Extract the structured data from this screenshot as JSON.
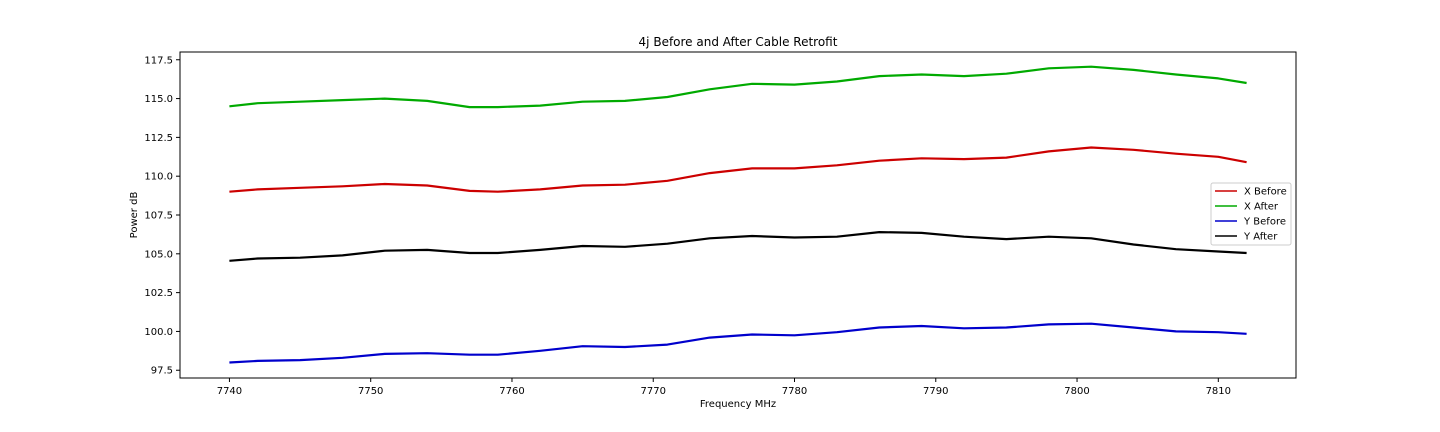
{
  "chart_data": {
    "type": "line",
    "title": "4j Before and After Cable Retrofit",
    "xlabel": "Frequency MHz",
    "ylabel": "Power dB",
    "xlim": [
      7736.5,
      7815.5
    ],
    "ylim": [
      97.0,
      118.0
    ],
    "xticks": [
      7740,
      7750,
      7760,
      7770,
      7780,
      7790,
      7800,
      7810
    ],
    "yticks": [
      97.5,
      100.0,
      102.5,
      105.0,
      107.5,
      110.0,
      112.5,
      115.0,
      117.5
    ],
    "ytick_labels": [
      "97.5",
      "100.0",
      "102.5",
      "105.0",
      "107.5",
      "110.0",
      "112.5",
      "115.0",
      "117.5"
    ],
    "grid": false,
    "legend_position": "center-right",
    "series": [
      {
        "name": "X Before",
        "color": "#cc0000",
        "x": [
          7740,
          7742,
          7745,
          7748,
          7751,
          7754,
          7757,
          7759,
          7762,
          7765,
          7768,
          7771,
          7774,
          7777,
          7780,
          7783,
          7786,
          7789,
          7792,
          7795,
          7798,
          7801,
          7804,
          7807,
          7810,
          7812
        ],
        "y": [
          109.0,
          109.15,
          109.25,
          109.35,
          109.5,
          109.4,
          109.05,
          109.0,
          109.15,
          109.4,
          109.45,
          109.7,
          110.2,
          110.5,
          110.5,
          110.7,
          111.0,
          111.15,
          111.1,
          111.2,
          111.6,
          111.85,
          111.7,
          111.45,
          111.25,
          110.9
        ]
      },
      {
        "name": "X After",
        "color": "#00aa00",
        "x": [
          7740,
          7742,
          7745,
          7748,
          7751,
          7754,
          7757,
          7759,
          7762,
          7765,
          7768,
          7771,
          7774,
          7777,
          7780,
          7783,
          7786,
          7789,
          7792,
          7795,
          7798,
          7801,
          7804,
          7807,
          7810,
          7812
        ],
        "y": [
          114.5,
          114.7,
          114.8,
          114.9,
          115.0,
          114.85,
          114.45,
          114.45,
          114.55,
          114.8,
          114.85,
          115.1,
          115.6,
          115.95,
          115.9,
          116.1,
          116.45,
          116.55,
          116.45,
          116.6,
          116.95,
          117.05,
          116.85,
          116.55,
          116.3,
          116.0
        ]
      },
      {
        "name": "Y Before",
        "color": "#0000cc",
        "x": [
          7740,
          7742,
          7745,
          7748,
          7751,
          7754,
          7757,
          7759,
          7762,
          7765,
          7768,
          7771,
          7774,
          7777,
          7780,
          7783,
          7786,
          7789,
          7792,
          7795,
          7798,
          7801,
          7804,
          7807,
          7810,
          7812
        ],
        "y": [
          98.0,
          98.1,
          98.15,
          98.3,
          98.55,
          98.6,
          98.5,
          98.5,
          98.75,
          99.05,
          99.0,
          99.15,
          99.6,
          99.8,
          99.75,
          99.95,
          100.25,
          100.35,
          100.2,
          100.25,
          100.45,
          100.5,
          100.25,
          100.0,
          99.95,
          99.85
        ]
      },
      {
        "name": "Y After",
        "color": "#000000",
        "x": [
          7740,
          7742,
          7745,
          7748,
          7751,
          7754,
          7757,
          7759,
          7762,
          7765,
          7768,
          7771,
          7774,
          7777,
          7780,
          7783,
          7786,
          7789,
          7792,
          7795,
          7798,
          7801,
          7804,
          7807,
          7810,
          7812
        ],
        "y": [
          104.55,
          104.7,
          104.75,
          104.9,
          105.2,
          105.25,
          105.05,
          105.05,
          105.25,
          105.5,
          105.45,
          105.65,
          106.0,
          106.15,
          106.05,
          106.1,
          106.4,
          106.35,
          106.1,
          105.95,
          106.1,
          106.0,
          105.6,
          105.3,
          105.15,
          105.05
        ]
      }
    ]
  }
}
